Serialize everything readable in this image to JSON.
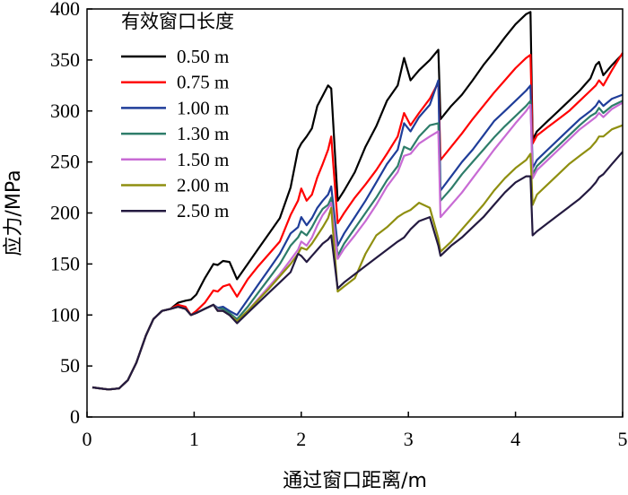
{
  "chart_data": {
    "type": "line",
    "title": "",
    "xlabel": "通过窗口距离/m",
    "ylabel": "应力/MPa",
    "xlim": [
      0,
      5
    ],
    "ylim": [
      0,
      400
    ],
    "xticks": [
      0,
      1,
      2,
      3,
      4,
      5
    ],
    "yticks": [
      0,
      50,
      100,
      150,
      200,
      250,
      300,
      350,
      400
    ],
    "grid": false,
    "legend_title": "有效窗口长度",
    "legend_position": "top-left",
    "series": [
      {
        "name": "0.50 m",
        "color": "#000000",
        "x": [
          0.05,
          0.12,
          0.2,
          0.3,
          0.38,
          0.46,
          0.55,
          0.62,
          0.7,
          0.78,
          0.85,
          0.92,
          0.97,
          1.02,
          1.1,
          1.18,
          1.22,
          1.27,
          1.33,
          1.4,
          1.5,
          1.6,
          1.7,
          1.8,
          1.9,
          1.97,
          2.0,
          2.05,
          2.1,
          2.15,
          2.2,
          2.25,
          2.28,
          2.34,
          2.4,
          2.5,
          2.6,
          2.7,
          2.8,
          2.9,
          2.96,
          3.02,
          3.1,
          3.2,
          3.28,
          3.3,
          3.4,
          3.5,
          3.6,
          3.7,
          3.8,
          3.9,
          4.0,
          4.1,
          4.14,
          4.16,
          4.2,
          4.3,
          4.4,
          4.5,
          4.6,
          4.7,
          4.75,
          4.78,
          4.82,
          4.9,
          5.0
        ],
        "y": [
          29,
          28,
          27,
          28,
          36,
          53,
          80,
          96,
          104,
          106,
          112,
          114,
          115,
          120,
          136,
          150,
          149,
          153,
          152,
          135,
          150,
          165,
          180,
          195,
          225,
          262,
          268,
          275,
          283,
          305,
          315,
          325,
          322,
          212,
          222,
          240,
          265,
          285,
          310,
          325,
          352,
          330,
          340,
          350,
          360,
          292,
          305,
          316,
          330,
          345,
          358,
          372,
          385,
          395,
          397,
          272,
          280,
          290,
          300,
          310,
          320,
          332,
          345,
          348,
          335,
          345,
          356
        ]
      },
      {
        "name": "0.75 m",
        "color": "#ff0000",
        "x": [
          0.05,
          0.12,
          0.2,
          0.3,
          0.38,
          0.46,
          0.55,
          0.62,
          0.7,
          0.78,
          0.85,
          0.92,
          0.97,
          1.02,
          1.1,
          1.18,
          1.22,
          1.27,
          1.33,
          1.4,
          1.5,
          1.6,
          1.7,
          1.8,
          1.9,
          1.97,
          2.0,
          2.05,
          2.1,
          2.15,
          2.2,
          2.25,
          2.28,
          2.34,
          2.4,
          2.5,
          2.6,
          2.7,
          2.8,
          2.9,
          2.96,
          3.02,
          3.1,
          3.2,
          3.28,
          3.3,
          3.4,
          3.5,
          3.6,
          3.7,
          3.8,
          3.9,
          4.0,
          4.1,
          4.14,
          4.16,
          4.2,
          4.3,
          4.4,
          4.5,
          4.6,
          4.7,
          4.75,
          4.78,
          4.82,
          4.9,
          5.0
        ],
        "y": [
          29,
          28,
          27,
          28,
          36,
          53,
          80,
          96,
          104,
          106,
          110,
          108,
          100,
          104,
          112,
          124,
          123,
          128,
          130,
          118,
          135,
          148,
          160,
          172,
          198,
          212,
          224,
          212,
          218,
          235,
          248,
          262,
          275,
          190,
          200,
          215,
          228,
          242,
          258,
          275,
          298,
          286,
          298,
          312,
          328,
          252,
          265,
          278,
          292,
          305,
          318,
          330,
          342,
          352,
          355,
          268,
          276,
          284,
          292,
          300,
          310,
          320,
          325,
          330,
          325,
          340,
          357
        ]
      },
      {
        "name": "1.00 m",
        "color": "#1f3d99",
        "x": [
          0.05,
          0.12,
          0.2,
          0.3,
          0.38,
          0.46,
          0.55,
          0.62,
          0.7,
          0.78,
          0.85,
          0.92,
          0.97,
          1.02,
          1.1,
          1.18,
          1.22,
          1.27,
          1.33,
          1.4,
          1.5,
          1.6,
          1.7,
          1.8,
          1.9,
          1.97,
          2.0,
          2.05,
          2.1,
          2.15,
          2.2,
          2.25,
          2.28,
          2.34,
          2.4,
          2.5,
          2.6,
          2.7,
          2.8,
          2.9,
          2.96,
          3.02,
          3.1,
          3.2,
          3.28,
          3.3,
          3.4,
          3.5,
          3.6,
          3.7,
          3.8,
          3.9,
          4.0,
          4.1,
          4.14,
          4.16,
          4.2,
          4.3,
          4.4,
          4.5,
          4.6,
          4.7,
          4.75,
          4.78,
          4.82,
          4.9,
          5.0
        ],
        "y": [
          29,
          28,
          27,
          28,
          36,
          53,
          80,
          96,
          104,
          106,
          108,
          106,
          100,
          102,
          106,
          110,
          107,
          108,
          104,
          100,
          115,
          130,
          145,
          160,
          180,
          186,
          196,
          188,
          195,
          205,
          212,
          218,
          226,
          168,
          180,
          196,
          212,
          230,
          248,
          262,
          288,
          280,
          294,
          306,
          330,
          222,
          236,
          250,
          262,
          276,
          290,
          300,
          310,
          320,
          325,
          244,
          252,
          262,
          272,
          282,
          292,
          300,
          305,
          310,
          305,
          312,
          316
        ]
      },
      {
        "name": "1.30 m",
        "color": "#2e7d6a",
        "x": [
          0.05,
          0.12,
          0.2,
          0.3,
          0.38,
          0.46,
          0.55,
          0.62,
          0.7,
          0.78,
          0.85,
          0.92,
          0.97,
          1.02,
          1.1,
          1.18,
          1.22,
          1.27,
          1.33,
          1.4,
          1.5,
          1.6,
          1.7,
          1.8,
          1.9,
          1.97,
          2.0,
          2.05,
          2.1,
          2.15,
          2.2,
          2.25,
          2.28,
          2.34,
          2.4,
          2.5,
          2.6,
          2.7,
          2.8,
          2.9,
          2.96,
          3.02,
          3.1,
          3.2,
          3.28,
          3.3,
          3.4,
          3.5,
          3.6,
          3.7,
          3.8,
          3.9,
          4.0,
          4.1,
          4.14,
          4.16,
          4.2,
          4.3,
          4.4,
          4.5,
          4.6,
          4.7,
          4.75,
          4.78,
          4.82,
          4.9,
          5.0
        ],
        "y": [
          29,
          28,
          27,
          28,
          36,
          53,
          80,
          96,
          104,
          106,
          108,
          106,
          100,
          102,
          106,
          110,
          106,
          106,
          102,
          96,
          108,
          122,
          136,
          150,
          168,
          176,
          182,
          178,
          186,
          196,
          204,
          208,
          215,
          158,
          170,
          185,
          200,
          215,
          232,
          246,
          265,
          262,
          275,
          286,
          288,
          212,
          224,
          238,
          250,
          262,
          274,
          285,
          295,
          305,
          310,
          238,
          246,
          256,
          266,
          276,
          286,
          295,
          298,
          303,
          298,
          305,
          310
        ]
      },
      {
        "name": "1.50 m",
        "color": "#c86bd4",
        "x": [
          0.05,
          0.12,
          0.2,
          0.3,
          0.38,
          0.46,
          0.55,
          0.62,
          0.7,
          0.78,
          0.85,
          0.92,
          0.97,
          1.02,
          1.1,
          1.18,
          1.22,
          1.27,
          1.33,
          1.4,
          1.5,
          1.6,
          1.7,
          1.8,
          1.9,
          1.97,
          2.0,
          2.05,
          2.1,
          2.15,
          2.2,
          2.25,
          2.28,
          2.34,
          2.4,
          2.5,
          2.6,
          2.7,
          2.8,
          2.9,
          2.96,
          3.02,
          3.1,
          3.2,
          3.28,
          3.3,
          3.4,
          3.5,
          3.6,
          3.7,
          3.8,
          3.9,
          4.0,
          4.1,
          4.14,
          4.16,
          4.2,
          4.3,
          4.4,
          4.5,
          4.6,
          4.7,
          4.75,
          4.78,
          4.82,
          4.9,
          5.0
        ],
        "y": [
          29,
          28,
          27,
          28,
          36,
          53,
          80,
          96,
          104,
          106,
          108,
          106,
          100,
          102,
          106,
          110,
          105,
          104,
          100,
          94,
          104,
          116,
          128,
          140,
          154,
          164,
          172,
          168,
          176,
          188,
          198,
          205,
          210,
          155,
          165,
          178,
          192,
          208,
          226,
          240,
          256,
          258,
          268,
          275,
          280,
          196,
          208,
          220,
          234,
          248,
          262,
          275,
          288,
          300,
          306,
          234,
          242,
          252,
          262,
          272,
          282,
          290,
          294,
          298,
          294,
          302,
          308
        ]
      },
      {
        "name": "2.00 m",
        "color": "#8f8f10",
        "x": [
          0.05,
          0.12,
          0.2,
          0.3,
          0.38,
          0.46,
          0.55,
          0.62,
          0.7,
          0.78,
          0.85,
          0.92,
          0.97,
          1.02,
          1.1,
          1.18,
          1.22,
          1.27,
          1.33,
          1.4,
          1.5,
          1.6,
          1.7,
          1.8,
          1.9,
          1.97,
          2.0,
          2.05,
          2.1,
          2.15,
          2.2,
          2.25,
          2.28,
          2.34,
          2.4,
          2.5,
          2.6,
          2.7,
          2.8,
          2.9,
          2.96,
          3.02,
          3.1,
          3.2,
          3.28,
          3.3,
          3.4,
          3.5,
          3.6,
          3.7,
          3.8,
          3.9,
          4.0,
          4.1,
          4.14,
          4.16,
          4.2,
          4.3,
          4.4,
          4.5,
          4.6,
          4.7,
          4.75,
          4.78,
          4.82,
          4.9,
          5.0
        ],
        "y": [
          29,
          28,
          27,
          28,
          36,
          53,
          80,
          96,
          104,
          106,
          108,
          106,
          100,
          102,
          106,
          110,
          104,
          104,
          100,
          94,
          104,
          115,
          126,
          138,
          150,
          160,
          166,
          164,
          170,
          178,
          186,
          195,
          205,
          123,
          128,
          136,
          160,
          178,
          186,
          196,
          200,
          203,
          210,
          205,
          175,
          162,
          172,
          184,
          196,
          208,
          222,
          234,
          244,
          252,
          258,
          208,
          218,
          228,
          238,
          248,
          256,
          264,
          270,
          275,
          275,
          282,
          286
        ]
      },
      {
        "name": "2.50 m",
        "color": "#241a40",
        "x": [
          0.05,
          0.12,
          0.2,
          0.3,
          0.38,
          0.46,
          0.55,
          0.62,
          0.7,
          0.78,
          0.85,
          0.92,
          0.97,
          1.02,
          1.1,
          1.18,
          1.22,
          1.27,
          1.33,
          1.4,
          1.5,
          1.6,
          1.7,
          1.8,
          1.9,
          1.97,
          2.0,
          2.05,
          2.1,
          2.15,
          2.2,
          2.25,
          2.28,
          2.34,
          2.4,
          2.5,
          2.6,
          2.7,
          2.8,
          2.9,
          2.96,
          3.02,
          3.1,
          3.2,
          3.28,
          3.3,
          3.4,
          3.5,
          3.6,
          3.7,
          3.8,
          3.9,
          4.0,
          4.1,
          4.14,
          4.16,
          4.2,
          4.3,
          4.4,
          4.5,
          4.6,
          4.7,
          4.75,
          4.78,
          4.82,
          4.9,
          5.0
        ],
        "y": [
          29,
          28,
          27,
          28,
          36,
          53,
          80,
          96,
          104,
          106,
          108,
          106,
          100,
          102,
          106,
          110,
          104,
          104,
          100,
          92,
          102,
          112,
          122,
          132,
          142,
          160,
          158,
          152,
          158,
          164,
          170,
          174,
          178,
          126,
          132,
          140,
          148,
          156,
          164,
          172,
          176,
          184,
          192,
          196,
          168,
          158,
          168,
          176,
          186,
          196,
          208,
          220,
          230,
          236,
          236,
          178,
          182,
          190,
          198,
          206,
          214,
          224,
          230,
          235,
          238,
          248,
          260
        ]
      }
    ]
  }
}
